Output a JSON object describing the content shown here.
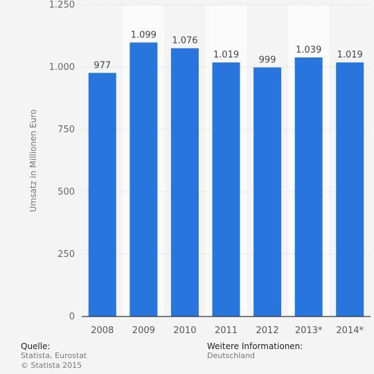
{
  "chart_data": {
    "type": "bar",
    "categories": [
      "2008",
      "2009",
      "2010",
      "2011",
      "2012",
      "2013*",
      "2014*"
    ],
    "values": [
      977,
      1099,
      1076,
      1019,
      999,
      1039,
      1019
    ],
    "value_labels": [
      "977",
      "1.099",
      "1.076",
      "1.019",
      "999",
      "1.039",
      "1.019"
    ],
    "ylabel": "Umsatz in Millionen Euro",
    "ylim": [
      0,
      1250
    ],
    "yticks": [
      {
        "value": 0,
        "label": "0"
      },
      {
        "value": 250,
        "label": "250"
      },
      {
        "value": 500,
        "label": "500"
      },
      {
        "value": 750,
        "label": "750"
      },
      {
        "value": 1000,
        "label": "1.000"
      },
      {
        "value": 1250,
        "label": "1.250"
      }
    ],
    "grid": true,
    "bar_color": "#2876dd"
  },
  "footer": {
    "source_heading": "Quelle:",
    "source_text": "Statista, Eurostat",
    "copyright": "© Statista 2015",
    "info_heading": "Weitere Informationen:",
    "info_text": "Deutschland"
  }
}
